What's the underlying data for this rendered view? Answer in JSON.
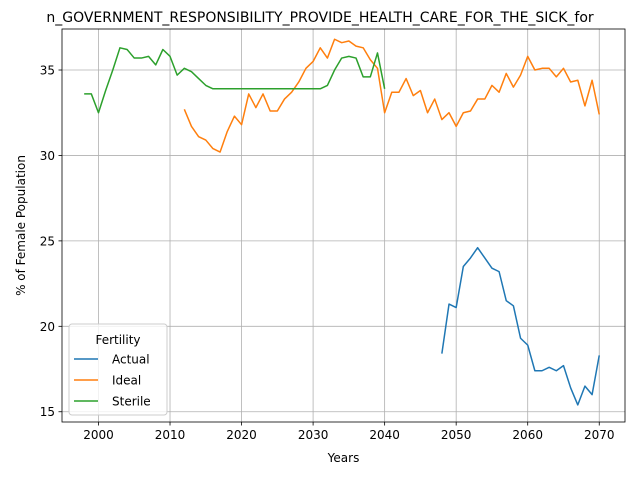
{
  "chart_data": {
    "type": "line",
    "title": "n_GOVERNMENT_RESPONSIBILITY_PROVIDE_HEALTH_CARE_FOR_THE_SICK_for",
    "xlabel": "Years",
    "ylabel": "% of Female Population",
    "xlim": [
      1994.9,
      2073.6
    ],
    "ylim": [
      14.4,
      37.4
    ],
    "x_ticks": [
      2000,
      2010,
      2020,
      2030,
      2040,
      2050,
      2060,
      2070
    ],
    "y_ticks": [
      15,
      20,
      25,
      30,
      35
    ],
    "grid": true,
    "legend": {
      "title": "Fertility",
      "placement": "lower-left"
    },
    "series": [
      {
        "name": "Actual",
        "color": "#1f77b4",
        "x": [
          2048,
          2049,
          2050,
          2051,
          2052,
          2053,
          2054,
          2055,
          2056,
          2057,
          2058,
          2059,
          2060,
          2061,
          2062,
          2063,
          2064,
          2065,
          2066,
          2067,
          2068,
          2069,
          2070
        ],
        "y": [
          18.4,
          21.3,
          21.1,
          23.5,
          24.0,
          24.6,
          24.0,
          23.4,
          23.2,
          21.5,
          21.2,
          19.3,
          18.9,
          17.4,
          17.4,
          17.6,
          17.4,
          17.7,
          16.4,
          15.4,
          16.5,
          16.0,
          18.3
        ]
      },
      {
        "name": "Ideal",
        "color": "#ff7f0e",
        "x": [
          2012,
          2013,
          2014,
          2015,
          2016,
          2017,
          2018,
          2019,
          2020,
          2021,
          2022,
          2023,
          2024,
          2025,
          2026,
          2027,
          2028,
          2029,
          2030,
          2031,
          2032,
          2033,
          2034,
          2035,
          2036,
          2037,
          2038,
          2039,
          2040,
          2041,
          2042,
          2043,
          2044,
          2045,
          2046,
          2047,
          2048,
          2049,
          2050,
          2051,
          2052,
          2053,
          2054,
          2055,
          2056,
          2057,
          2058,
          2059,
          2060,
          2061,
          2062,
          2063,
          2064,
          2065,
          2066,
          2067,
          2068,
          2069,
          2070
        ],
        "y": [
          32.7,
          31.7,
          31.1,
          30.9,
          30.4,
          30.2,
          31.4,
          32.3,
          31.8,
          33.6,
          32.8,
          33.6,
          32.6,
          32.6,
          33.3,
          33.7,
          34.3,
          35.1,
          35.5,
          36.3,
          35.7,
          36.8,
          36.6,
          36.7,
          36.4,
          36.3,
          35.6,
          35.1,
          32.5,
          33.7,
          33.7,
          34.5,
          33.5,
          33.8,
          32.5,
          33.3,
          32.1,
          32.5,
          31.7,
          32.5,
          32.6,
          33.3,
          33.3,
          34.1,
          33.7,
          34.8,
          34.0,
          34.7,
          35.8,
          35.0,
          35.1,
          35.1,
          34.6,
          35.1,
          34.3,
          34.4,
          32.9,
          34.4,
          32.4
        ]
      },
      {
        "name": "Sterile",
        "color": "#2ca02c",
        "x": [
          1998,
          1999,
          2000,
          2001,
          2002,
          2003,
          2004,
          2005,
          2006,
          2007,
          2008,
          2009,
          2010,
          2011,
          2012,
          2013,
          2014,
          2015,
          2016,
          2017,
          2018,
          2019,
          2020,
          2021,
          2022,
          2023,
          2024,
          2025,
          2026,
          2027,
          2028,
          2029,
          2030,
          2031,
          2032,
          2033,
          2034,
          2035,
          2036,
          2037,
          2038,
          2039,
          2040
        ],
        "y": [
          33.6,
          33.6,
          32.5,
          33.8,
          35.0,
          36.3,
          36.2,
          35.7,
          35.7,
          35.8,
          35.3,
          36.2,
          35.8,
          34.7,
          35.1,
          34.9,
          34.5,
          34.1,
          33.9,
          33.9,
          33.9,
          33.9,
          33.9,
          33.9,
          33.9,
          33.9,
          33.9,
          33.9,
          33.9,
          33.9,
          33.9,
          33.9,
          33.9,
          33.9,
          34.1,
          35.0,
          35.7,
          35.8,
          35.7,
          34.6,
          34.6,
          36.0,
          33.9
        ]
      }
    ]
  }
}
